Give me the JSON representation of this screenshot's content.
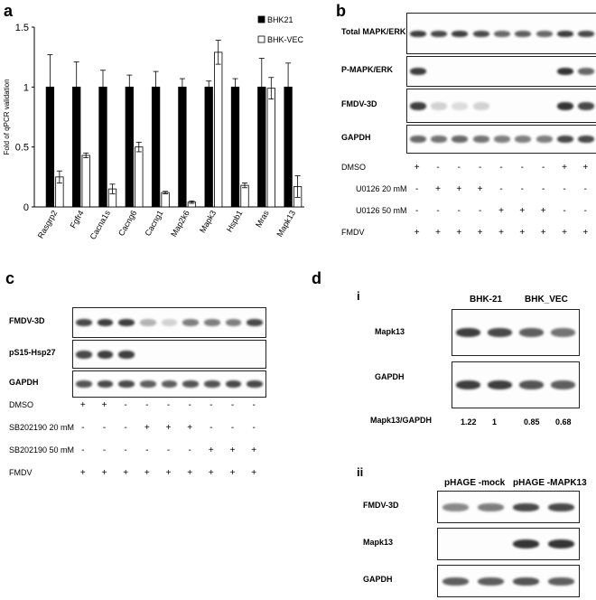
{
  "panels": {
    "a": "a",
    "b": "b",
    "c": "c",
    "d": "d",
    "d_i": "i",
    "d_ii": "ii"
  },
  "chart_data": {
    "type": "bar",
    "ylabel": "Fold of qPCR validation",
    "ylim": [
      0,
      1.5
    ],
    "yticks": [
      "0",
      "0.5",
      "1",
      "1.5"
    ],
    "categories": [
      "Rasgrp2",
      "Fgfr4",
      "Cacna1s",
      "Cacng6",
      "Cacng1",
      "Map2k6",
      "Mapk3",
      "Hspb1",
      "Mras",
      "Mapk13"
    ],
    "series": [
      {
        "name": "BHK21",
        "color": "#000000",
        "values": [
          1,
          1,
          1,
          1,
          1,
          1,
          1,
          1,
          1,
          1
        ],
        "errors": [
          0.27,
          0.21,
          0.14,
          0.1,
          0.13,
          0.07,
          0.05,
          0.07,
          0.24,
          0.2
        ]
      },
      {
        "name": "BHK-VEC",
        "color": "#ffffff",
        "values": [
          0.25,
          0.43,
          0.15,
          0.5,
          0.12,
          0.04,
          1.29,
          0.18,
          0.99,
          0.17
        ],
        "errors": [
          0.05,
          0.02,
          0.04,
          0.04,
          0.01,
          0.01,
          0.1,
          0.02,
          0.09,
          0.09
        ]
      }
    ],
    "legend_placement": "top-right"
  },
  "panel_b": {
    "blots": [
      "Total MAPK/ERK",
      "P-MAPK/ERK",
      "FMDV-3D",
      "GAPDH"
    ],
    "conditions": [
      {
        "label": "DMSO",
        "signs": [
          "+",
          "-",
          "-",
          "-",
          "-",
          "-",
          "-",
          "+",
          "+"
        ]
      },
      {
        "label": "U0126 20 mM",
        "signs": [
          "-",
          "+",
          "+",
          "+",
          "-",
          "-",
          "-",
          "-",
          "-"
        ]
      },
      {
        "label": "U0126 50 mM",
        "signs": [
          "-",
          "-",
          "-",
          "-",
          "+",
          "+",
          "+",
          "-",
          "-"
        ]
      },
      {
        "label": "FMDV",
        "signs": [
          "+",
          "+",
          "+",
          "+",
          "+",
          "+",
          "+",
          "+",
          "+"
        ]
      }
    ]
  },
  "panel_c": {
    "blots": [
      "FMDV-3D",
      "pS15-Hsp27",
      "GAPDH"
    ],
    "conditions": [
      {
        "label": "DMSO",
        "signs": [
          "+",
          "+",
          "-",
          "-",
          "-",
          "-",
          "-",
          "-",
          "-"
        ]
      },
      {
        "label": "SB202190 20 mM",
        "signs": [
          "-",
          "-",
          "-",
          "+",
          "+",
          "+",
          "-",
          "-",
          "-"
        ]
      },
      {
        "label": "SB202190 50 mM",
        "signs": [
          "-",
          "-",
          "-",
          "-",
          "-",
          "-",
          "+",
          "+",
          "+"
        ]
      },
      {
        "label": "FMDV",
        "signs": [
          "+",
          "+",
          "+",
          "+",
          "+",
          "+",
          "+",
          "+",
          "+"
        ]
      }
    ]
  },
  "panel_d_i": {
    "groups": [
      "BHK-21",
      "BHK_VEC"
    ],
    "blots": [
      "Mapk13",
      "GAPDH"
    ],
    "ratio_label": "Mapk13/GAPDH",
    "ratios": [
      "1.22",
      "1",
      "0.85",
      "0.68"
    ]
  },
  "panel_d_ii": {
    "groups": [
      "pHAGE -mock",
      "pHAGE -MAPK13"
    ],
    "blots": [
      "FMDV-3D",
      "Mapk13",
      "GAPDH"
    ]
  }
}
